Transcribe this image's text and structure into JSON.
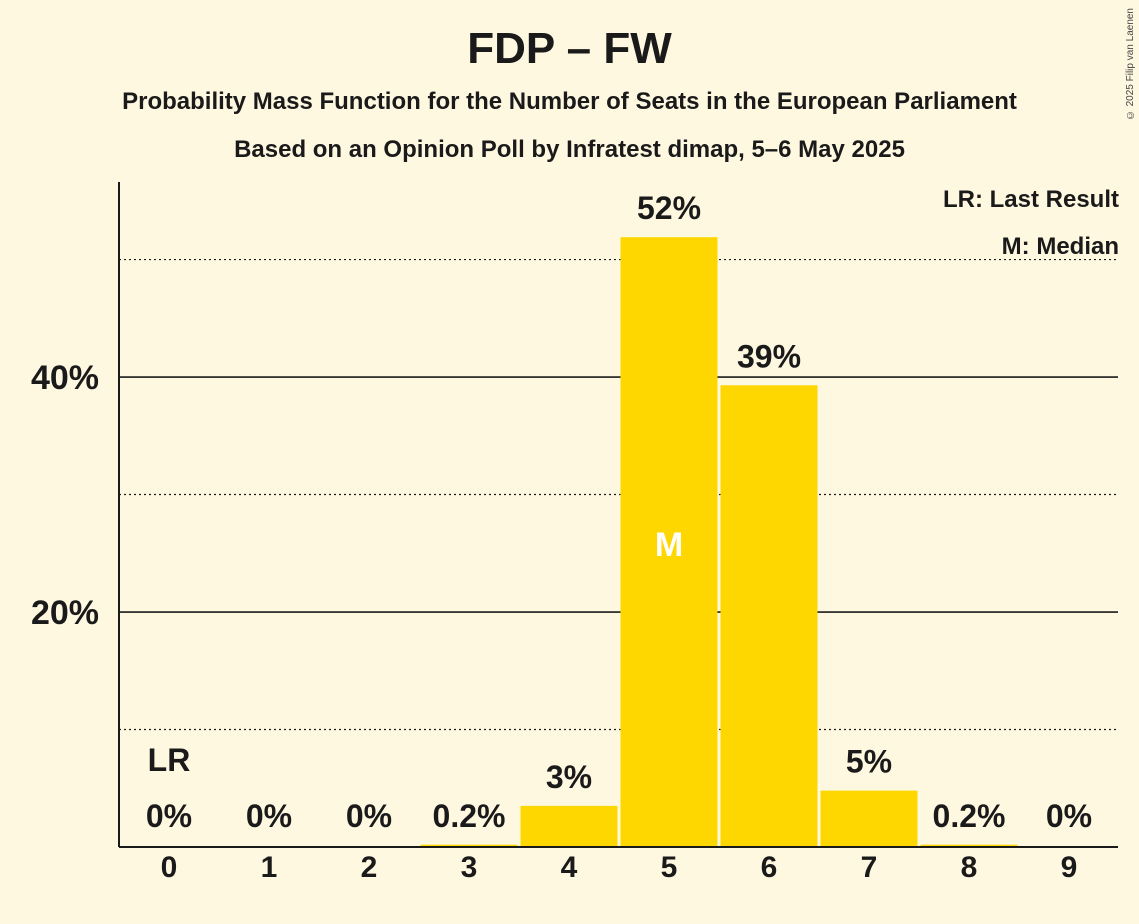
{
  "title": "FDP – FW",
  "subtitle": "Probability Mass Function for the Number of Seats in the European Parliament",
  "subtitle2": "Based on an Opinion Poll by Infratest dimap, 5–6 May 2025",
  "copyright": "© 2025 Filip van Laenen",
  "legend": {
    "last_result": "LR: Last Result",
    "median": "M: Median"
  },
  "colors": {
    "background": "#fff8e1",
    "bar": "#ffd700",
    "text": "#1a1a1a"
  },
  "chart_data": {
    "type": "bar",
    "categories": [
      "0",
      "1",
      "2",
      "3",
      "4",
      "5",
      "6",
      "7",
      "8",
      "9"
    ],
    "values": [
      0,
      0,
      0,
      0.2,
      3.5,
      51.9,
      39.3,
      4.8,
      0.2,
      0
    ],
    "labels": [
      "0%",
      "0%",
      "0%",
      "0.2%",
      "3%",
      "52%",
      "39%",
      "5%",
      "0.2%",
      "0%"
    ],
    "ylim": [
      0,
      56.6
    ],
    "yticks": [
      {
        "value": 10,
        "label": "",
        "style": "dotted"
      },
      {
        "value": 20,
        "label": "20%",
        "style": "solid"
      },
      {
        "value": 30,
        "label": "",
        "style": "dotted"
      },
      {
        "value": 40,
        "label": "40%",
        "style": "solid"
      },
      {
        "value": 50,
        "label": "",
        "style": "dotted"
      }
    ],
    "last_result": {
      "index": 0,
      "label": "LR"
    },
    "median": {
      "index": 5,
      "label": "M"
    }
  }
}
